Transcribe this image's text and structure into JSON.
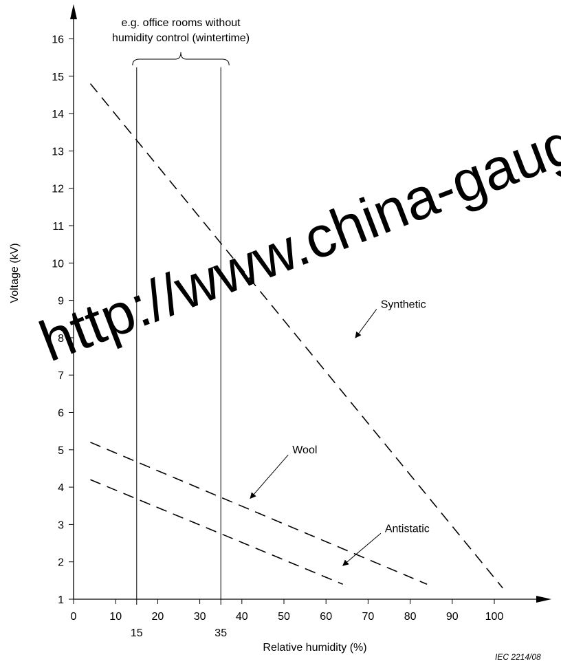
{
  "chart_data": {
    "type": "line",
    "xlabel": "Relative humidity   (%)",
    "ylabel": "Voltage   (kV)",
    "xlim": [
      0,
      110
    ],
    "ylim": [
      1,
      16
    ],
    "x_ticks": [
      0,
      10,
      20,
      30,
      40,
      50,
      60,
      70,
      80,
      90,
      100
    ],
    "y_ticks": [
      1,
      2,
      3,
      4,
      5,
      6,
      7,
      8,
      9,
      10,
      11,
      12,
      13,
      14,
      15,
      16
    ],
    "grid": false,
    "series": [
      {
        "name": "Synthetic",
        "style": "dashed",
        "x": [
          4,
          102
        ],
        "y": [
          14.8,
          1.3
        ]
      },
      {
        "name": "Wool",
        "style": "dashed",
        "x": [
          4,
          84
        ],
        "y": [
          5.2,
          1.4
        ]
      },
      {
        "name": "Antistatic",
        "style": "dashed",
        "x": [
          4,
          64
        ],
        "y": [
          4.2,
          1.4
        ]
      }
    ],
    "reference_lines": [
      {
        "x": 15,
        "label": "15"
      },
      {
        "x": 35,
        "label": "35"
      }
    ],
    "bracket_annotation": {
      "x_range": [
        15,
        35
      ],
      "lines": [
        "e.g. office rooms without",
        "humidity control (wintertime)"
      ]
    },
    "series_labels": [
      {
        "series": "Synthetic",
        "text": "Synthetic",
        "at": [
          73,
          8.8
        ],
        "points_to": [
          67,
          8.0
        ]
      },
      {
        "series": "Wool",
        "text": "Wool",
        "at": [
          52,
          4.9
        ],
        "points_to": [
          42,
          3.7
        ]
      },
      {
        "series": "Antistatic",
        "text": "Antistatic",
        "at": [
          74,
          2.8
        ],
        "points_to": [
          64,
          1.9
        ]
      }
    ],
    "credit": "IEC  2214/08",
    "watermark": "http://www.china-gauge"
  }
}
